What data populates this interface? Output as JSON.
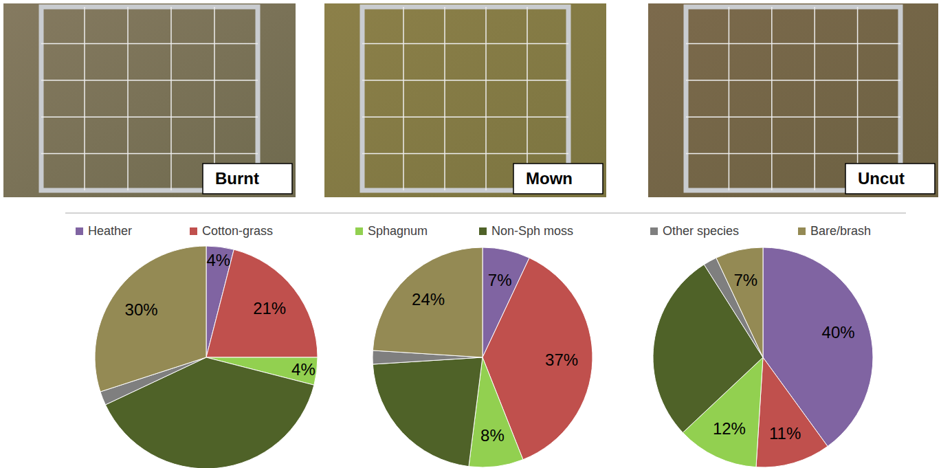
{
  "chart_data": {
    "type": "pie",
    "categories": [
      "Heather",
      "Cotton-grass",
      "Sphagnum",
      "Non-Sph moss",
      "Other species",
      "Bare/brash"
    ],
    "colors": [
      "#8064a2",
      "#c0504d",
      "#92d050",
      "#4f6228",
      "#7f7f7f",
      "#948a54"
    ],
    "legend": "top",
    "data_labels": true,
    "series": [
      {
        "name": "Burnt",
        "values": [
          4,
          21,
          4,
          39,
          2,
          30
        ],
        "value_labels": [
          "4%",
          "21%",
          "4%",
          null,
          null,
          "30%"
        ]
      },
      {
        "name": "Mown",
        "values": [
          7,
          37,
          8,
          22,
          2,
          24
        ],
        "value_labels": [
          "7%",
          "37%",
          "8%",
          null,
          null,
          "24%"
        ]
      },
      {
        "name": "Uncut",
        "values": [
          40,
          11,
          12,
          28,
          2,
          7
        ],
        "value_labels": [
          "40%",
          "11%",
          "12%",
          null,
          null,
          "7%"
        ]
      }
    ]
  }
}
